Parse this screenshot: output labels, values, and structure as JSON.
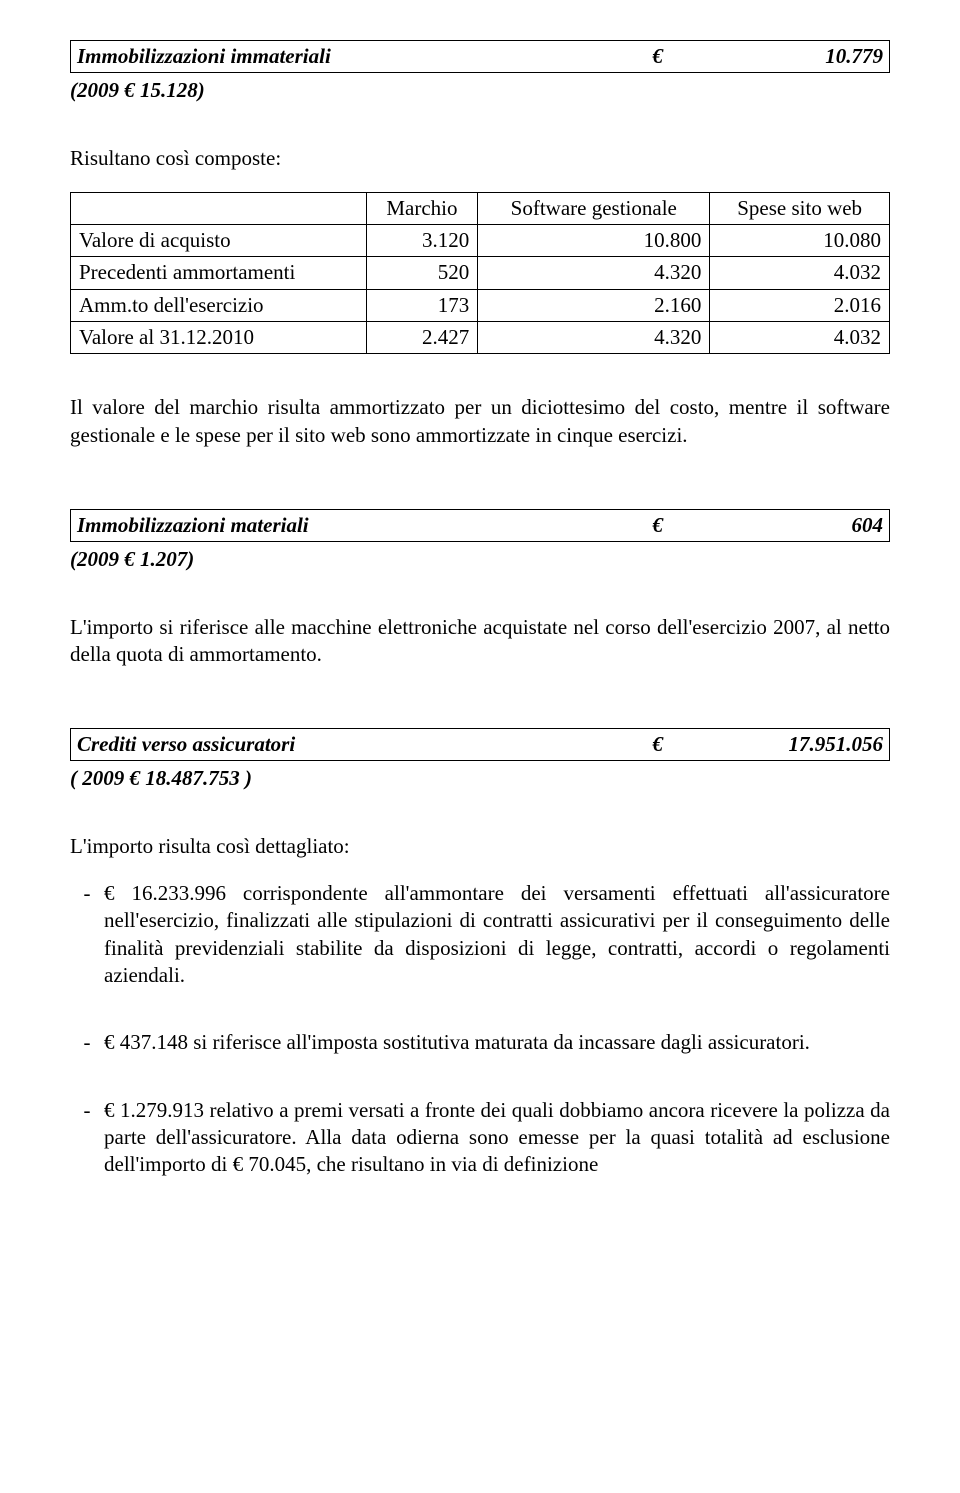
{
  "s1": {
    "title": "Immobilizzazioni immateriali",
    "currency": "€",
    "amount": "10.779",
    "prev": "(2009 € 15.128)",
    "intro": "Risultano così composte:",
    "table": {
      "headers": [
        "",
        "Marchio",
        "Software gestionale",
        "Spese sito web"
      ],
      "rows": [
        {
          "label": "Valore di acquisto",
          "c1": "3.120",
          "c2": "10.800",
          "c3": "10.080"
        },
        {
          "label": "Precedenti ammortamenti",
          "c1": "520",
          "c2": "4.320",
          "c3": "4.032"
        },
        {
          "label": "Amm.to dell'esercizio",
          "c1": "173",
          "c2": "2.160",
          "c3": "2.016"
        },
        {
          "label": "Valore al 31.12.2010",
          "c1": "2.427",
          "c2": "4.320",
          "c3": "4.032"
        }
      ]
    },
    "para": "Il valore del marchio risulta ammortizzato per un diciottesimo del costo, mentre il software gestionale e le spese per il sito web sono ammortizzate in cinque esercizi."
  },
  "s2": {
    "title": "Immobilizzazioni materiali",
    "currency": "€",
    "amount": "604",
    "prev": "(2009 € 1.207)",
    "para": "L'importo si riferisce alle macchine elettroniche acquistate nel corso dell'esercizio 2007, al netto della quota di ammortamento."
  },
  "s3": {
    "title": "Crediti verso assicuratori",
    "currency": "€",
    "amount": "17.951.056",
    "prev": "( 2009  € 18.487.753 )",
    "intro": "L'importo risulta così dettagliato:",
    "items": [
      "€ 16.233.996 corrispondente all'ammontare dei versamenti effettuati all'assicuratore nell'esercizio, finalizzati alle stipulazioni di contratti assicurativi per il conseguimento delle finalità previdenziali stabilite da disposizioni di legge, contratti, accordi o regolamenti aziendali.",
      "€ 437.148 si riferisce all'imposta sostitutiva maturata da incassare dagli assicuratori.",
      "€ 1.279.913 relativo a premi versati a fronte dei quali dobbiamo ancora ricevere la polizza da parte dell'assicuratore. Alla data odierna sono emesse per la quasi totalità ad esclusione dell'importo di € 70.045, che risultano in via di definizione"
    ]
  }
}
